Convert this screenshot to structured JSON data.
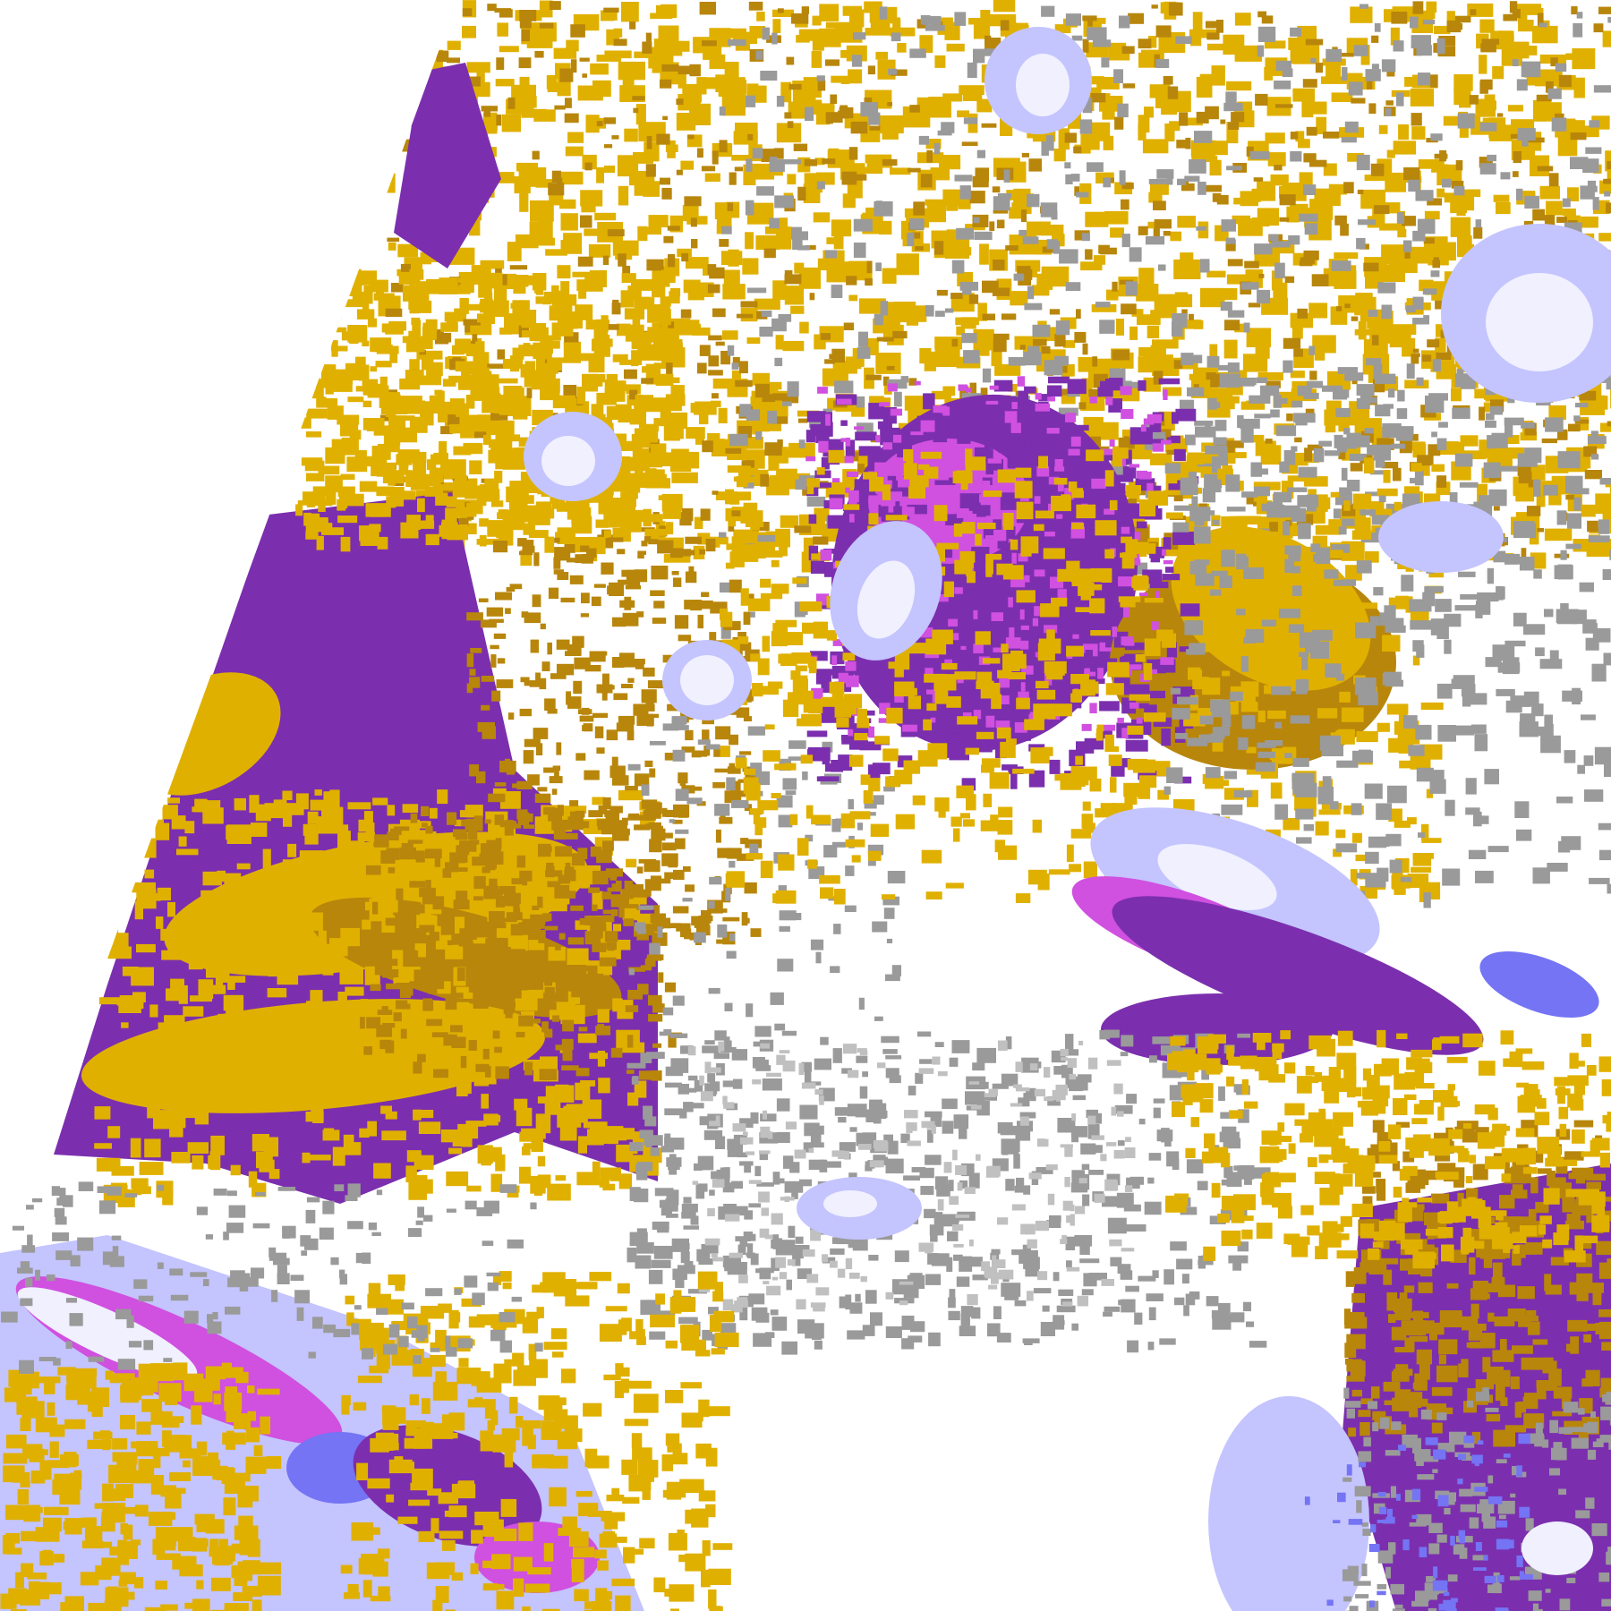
{
  "image": {
    "kind": "satellite cloud-type classification swath",
    "colors": {
      "background": "#ffffff",
      "purple": "#7b2fae",
      "gold": "#e0b000",
      "dark_gold": "#b8860b",
      "gray": "#9a9a9a",
      "light_gray": "#c0c0c0",
      "lavender": "#c4c4ff",
      "blue": "#7474f4",
      "magenta": "#d050e0",
      "pale": "#f0f0ff"
    }
  }
}
